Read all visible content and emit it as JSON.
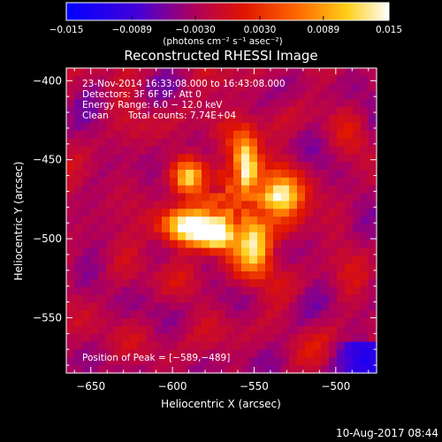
{
  "chart_data": {
    "type": "heatmap",
    "title": "Reconstructed RHESSI Image",
    "xlabel": "Heliocentric X (arcsec)",
    "ylabel": "Heliocentric Y (arcsec)",
    "xlim": [
      -665,
      -475
    ],
    "ylim": [
      -585,
      -392
    ],
    "x_ticks": [
      "−650",
      "−600",
      "−550",
      "−500"
    ],
    "x_tick_values": [
      -650,
      -600,
      -550,
      -500
    ],
    "y_ticks": [
      "−400",
      "−450",
      "−500",
      "−550"
    ],
    "y_tick_values": [
      -400,
      -450,
      -500,
      -550
    ],
    "colorbar": {
      "ticks": [
        "−0.015",
        "−0.0089",
        "−0.0030",
        "0.0030",
        "0.0089",
        "0.015"
      ],
      "tick_values": [
        -0.015,
        -0.0089,
        -0.003,
        0.003,
        0.0089,
        0.015
      ],
      "range": [
        -0.015,
        0.015
      ],
      "unit_label": "(photons cm⁻² s⁻¹ asec⁻²)",
      "colormap": "blue-purple-red-orange-yellow-white"
    },
    "annotations": {
      "time_range": "23-Nov-2014 16:33:08.000 to 16:43:08.000",
      "detectors": "Detectors: 3F 6F 9F, Att 0",
      "energy_range": "Energy Range: 6.0 − 12.0 keV",
      "clean": "Clean",
      "total_counts": "Total counts: 7.74E+04",
      "peak": "Position of Peak = [−589,−489]"
    },
    "peak_position": [
      -589,
      -489
    ],
    "sources": [
      {
        "x": -591,
        "y": -492,
        "sx": 11,
        "sy": 8,
        "amp": 1.0
      },
      {
        "x": -574,
        "y": -498,
        "sx": 8,
        "sy": 6,
        "amp": 0.9
      },
      {
        "x": -533,
        "y": -473,
        "sx": 9,
        "sy": 8,
        "amp": 0.88
      },
      {
        "x": -549,
        "y": -504,
        "sx": 7,
        "sy": 12,
        "amp": 0.78
      },
      {
        "x": -555,
        "y": -452,
        "sx": 5,
        "sy": 12,
        "amp": 0.72
      },
      {
        "x": -590,
        "y": -462,
        "sx": 6,
        "sy": 7,
        "amp": 0.55
      },
      {
        "x": -561,
        "y": -475,
        "sx": 18,
        "sy": 28,
        "amp": 0.3
      }
    ],
    "background_level": 0.42,
    "grid": false
  },
  "footer": {
    "timestamp": "10-Aug-2017 08:44"
  }
}
